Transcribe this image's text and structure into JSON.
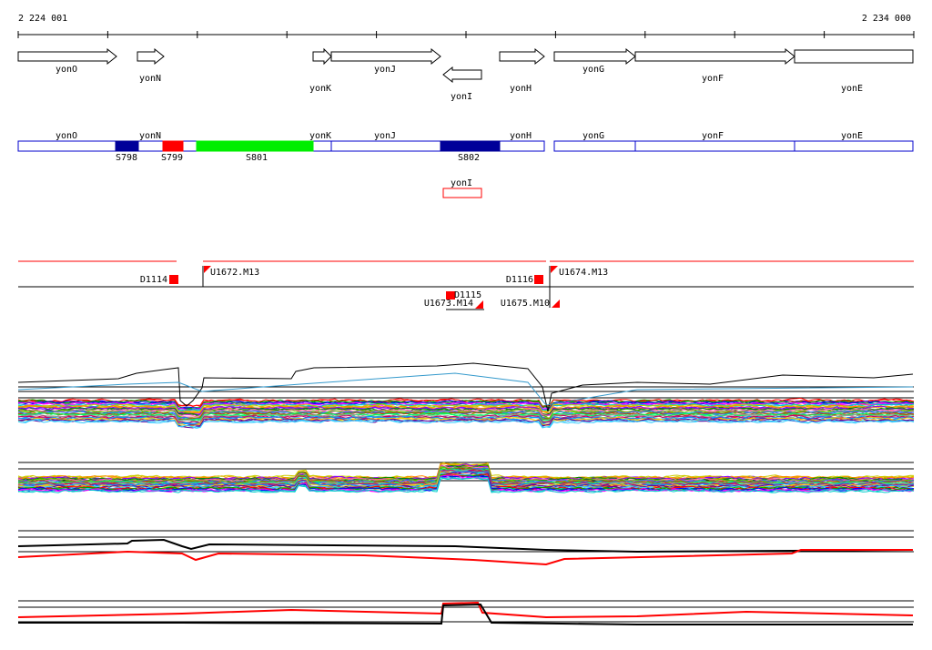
{
  "coords": {
    "start": "2 224 001",
    "end": "2 234 000"
  },
  "genes": [
    {
      "name": "yonO",
      "from": 20,
      "to": 128,
      "strand": "+"
    },
    {
      "name": "yonN",
      "from": 151,
      "to": 180,
      "strand": "+"
    },
    {
      "name": "yonK",
      "from": 344,
      "to": 364,
      "strand": "+"
    },
    {
      "name": "yonJ",
      "from": 364,
      "to": 484,
      "strand": "+"
    },
    {
      "name": "yonI",
      "from": 487,
      "to": 529,
      "strand": "-"
    },
    {
      "name": "yonH",
      "from": 549,
      "to": 598,
      "strand": "+"
    },
    {
      "name": "yonG",
      "from": 609,
      "to": 698,
      "strand": "+"
    },
    {
      "name": "yonF",
      "from": 698,
      "to": 873,
      "strand": "+"
    },
    {
      "name": "yonE",
      "from": 873,
      "to": 1003,
      "strand": "none"
    }
  ],
  "features": [
    {
      "label": "S798",
      "from": 127,
      "to": 152,
      "color": "#000099"
    },
    {
      "label": "S799",
      "from": 179,
      "to": 201,
      "color": "#ff0000"
    },
    {
      "label": "S801",
      "from": 216,
      "to": 344,
      "color": "#00ee00"
    },
    {
      "label": "S802",
      "from": 484,
      "to": 549,
      "color": "#000099"
    }
  ],
  "colors": {
    "blue_box": "#0000cc",
    "red": "#ff0000",
    "black": "#000000"
  },
  "experiments": [
    {
      "label": "D1114"
    },
    {
      "label": "U1672.M13"
    },
    {
      "label": "D1116"
    },
    {
      "label": "U1674.M13"
    },
    {
      "label": "D1115"
    },
    {
      "label": "U1673.M14"
    },
    {
      "label": "U1675.M10"
    }
  ]
}
